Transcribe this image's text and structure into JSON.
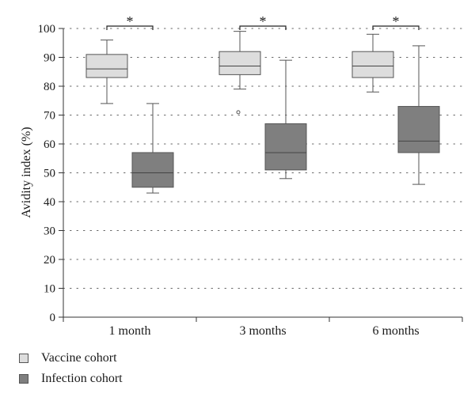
{
  "chart_data": {
    "type": "box",
    "categories": [
      "1 month",
      "3 months",
      "6 months"
    ],
    "ylabel": "Avidity index (%)",
    "ylim": [
      0,
      100
    ],
    "yticks": [
      0,
      10,
      20,
      30,
      40,
      50,
      60,
      70,
      80,
      90,
      100
    ],
    "grid": "horizontal dotted",
    "legend_placement": "bottom-left",
    "series": [
      {
        "name": "Vaccine cohort",
        "color": "#dddddd",
        "boxes": [
          {
            "min": 74,
            "q1": 83,
            "median": 86,
            "q3": 91,
            "max": 96,
            "outliers": []
          },
          {
            "min": 79,
            "q1": 84,
            "median": 87,
            "q3": 92,
            "max": 99,
            "outliers": [
              71
            ]
          },
          {
            "min": 78,
            "q1": 83,
            "median": 87,
            "q3": 92,
            "max": 98,
            "outliers": []
          }
        ]
      },
      {
        "name": "Infection cohort",
        "color": "#7f7f7f",
        "boxes": [
          {
            "min": 43,
            "q1": 45,
            "median": 50,
            "q3": 57,
            "max": 74,
            "outliers": []
          },
          {
            "min": 48,
            "q1": 51,
            "median": 57,
            "q3": 67,
            "max": 89,
            "outliers": []
          },
          {
            "min": 46,
            "q1": 57,
            "median": 61,
            "q3": 73,
            "max": 94,
            "outliers": []
          }
        ]
      }
    ],
    "annotations": [
      {
        "category": "1 month",
        "text": "*"
      },
      {
        "category": "3 months",
        "text": "*"
      },
      {
        "category": "6 months",
        "text": "*"
      }
    ]
  }
}
